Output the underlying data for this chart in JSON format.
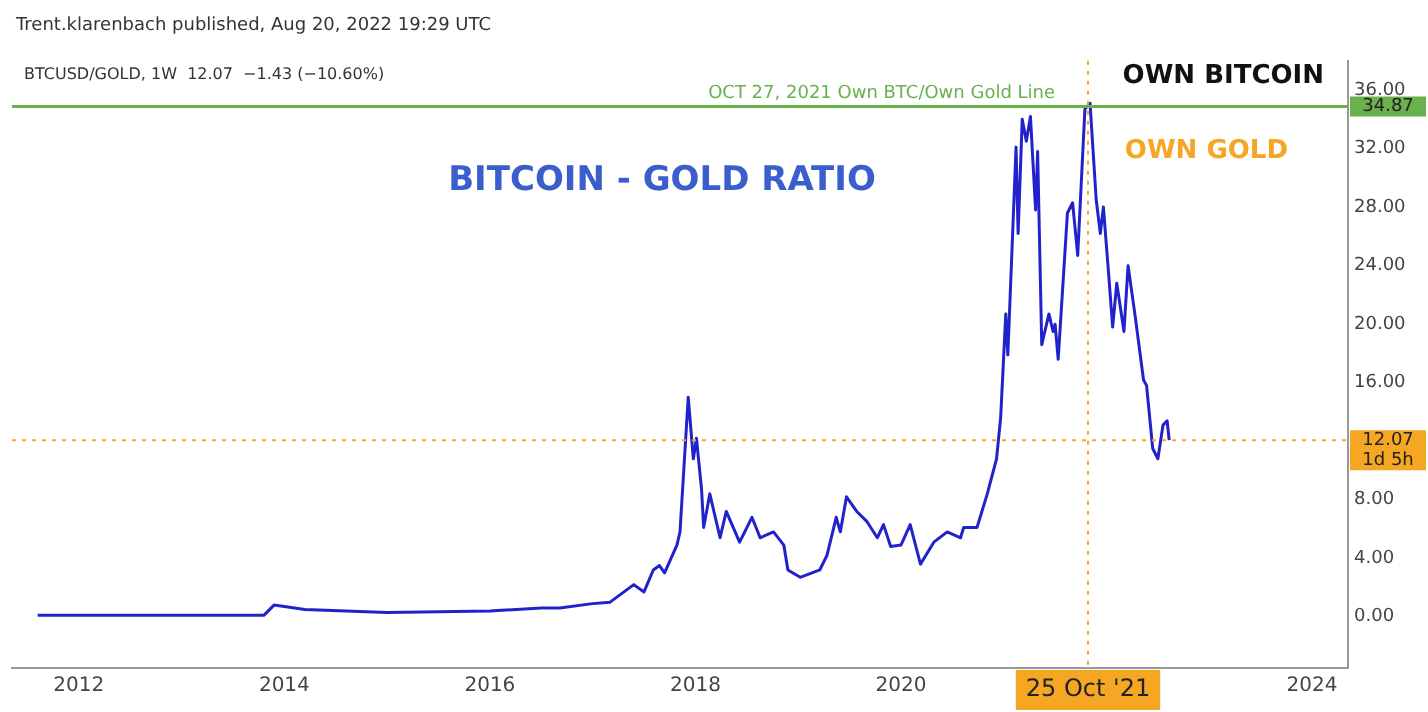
{
  "chart_data": {
    "type": "line",
    "title": "BITCOIN - GOLD RATIO",
    "subtitle": "BTCUSD/GOLD, 1W  12.07  −1.43 (−10.60%)",
    "annotations": [
      "Trent.klarenbach published, Aug 20, 2022 19:29 UTC",
      "OWN BITCOIN",
      "OWN GOLD",
      {
        "text": "OCT 27, 2021 Own BTC/Own Gold Line",
        "x": 2021.5,
        "y": 34.87
      }
    ],
    "xlim": [
      2011.35,
      2024.35
    ],
    "xticks": [
      2012,
      2014,
      2016,
      2018,
      2020,
      2024
    ],
    "ylim": [
      -3.5,
      38
    ],
    "yticks": [
      {
        "value": 0,
        "label": "0.00"
      },
      {
        "value": 4,
        "label": "4.00"
      },
      {
        "value": 8,
        "label": "8.00"
      },
      {
        "value": 16,
        "label": "16.00"
      },
      {
        "value": 20,
        "label": "20.00"
      },
      {
        "value": 24,
        "label": "24.00"
      },
      {
        "value": 28,
        "label": "28.00"
      },
      {
        "value": 32,
        "label": "32.00"
      },
      {
        "value": 36,
        "label": "36.00"
      }
    ],
    "grid": false,
    "legend": false,
    "marker": "none",
    "line_style": "solid",
    "ref_lines": [
      {
        "axis": "y",
        "value": 34.87,
        "label": "34.87",
        "color": "#6ab04c",
        "line_style": "solid"
      },
      {
        "axis": "y",
        "value": 12.07,
        "label": "12.07 1d 5h",
        "color": "#f5a623",
        "line_style": "dotted"
      },
      {
        "axis": "x",
        "value": 2021.82,
        "label": "25 Oct '21",
        "color": "#f5a623",
        "line_style": "dotted"
      }
    ],
    "series": [
      {
        "color": "#2222cc",
        "x": [
          2011.6,
          2012.5,
          2013.3,
          2013.8,
          2013.9,
          2014.0,
          2014.2,
          2015.0,
          2016.0,
          2016.5,
          2016.68,
          2017.0,
          2017.17,
          2017.4,
          2017.5,
          2017.59,
          2017.65,
          2017.7,
          2017.82,
          2017.85,
          2017.93,
          2017.98,
          2018.01,
          2018.06,
          2018.08,
          2018.14,
          2018.24,
          2018.3,
          2018.43,
          2018.55,
          2018.63,
          2018.76,
          2018.86,
          2018.9,
          2019.02,
          2019.21,
          2019.28,
          2019.37,
          2019.41,
          2019.47,
          2019.57,
          2019.67,
          2019.77,
          2019.83,
          2019.9,
          2020.0,
          2020.09,
          2020.19,
          2020.32,
          2020.45,
          2020.58,
          2020.61,
          2020.74,
          2020.84,
          2020.93,
          2020.97,
          2021.02,
          2021.04,
          2021.12,
          2021.14,
          2021.18,
          2021.22,
          2021.26,
          2021.31,
          2021.33,
          2021.37,
          2021.44,
          2021.48,
          2021.5,
          2021.53,
          2021.62,
          2021.67,
          2021.72,
          2021.79,
          2021.84,
          2021.9,
          2021.94,
          2021.97,
          2022.02,
          2022.06,
          2022.1,
          2022.17,
          2022.21,
          2022.28,
          2022.36,
          2022.39,
          2022.45,
          2022.5,
          2022.55,
          2022.59,
          2022.61
        ],
        "values": [
          0.1,
          0.1,
          0.1,
          0.1,
          0.8,
          0.7,
          0.5,
          0.3,
          0.4,
          0.6,
          0.6,
          0.9,
          1.0,
          2.2,
          1.7,
          3.2,
          3.5,
          3.0,
          4.9,
          5.8,
          15.0,
          10.8,
          12.2,
          8.7,
          6.1,
          8.4,
          5.4,
          7.2,
          5.1,
          6.8,
          5.4,
          5.8,
          4.9,
          3.2,
          2.7,
          3.2,
          4.2,
          6.8,
          5.8,
          8.2,
          7.2,
          6.5,
          5.4,
          6.3,
          4.8,
          4.9,
          6.3,
          3.6,
          5.1,
          5.8,
          5.4,
          6.1,
          6.1,
          8.4,
          10.8,
          13.6,
          20.7,
          17.9,
          32.1,
          26.2,
          34.0,
          32.5,
          34.2,
          27.8,
          31.8,
          18.6,
          20.7,
          19.5,
          20.0,
          17.6,
          27.6,
          28.3,
          24.7,
          34.7,
          35.1,
          28.5,
          26.2,
          28.0,
          23.5,
          19.8,
          22.8,
          19.5,
          24.0,
          20.5,
          16.2,
          15.8,
          11.5,
          10.8,
          13.1,
          13.4,
          12.07
        ]
      }
    ]
  }
}
